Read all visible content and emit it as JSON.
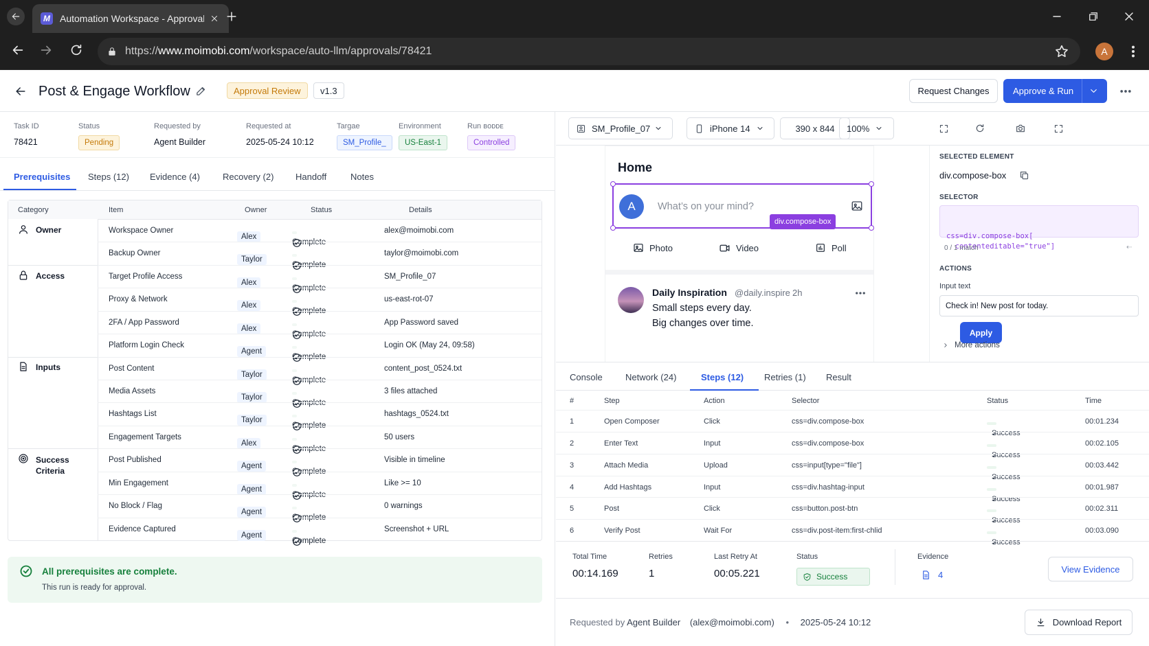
{
  "browser": {
    "tab_title": "Automation Workspace - Approval",
    "url_prefix": "https://",
    "url_host": "www.moimobi.com",
    "url_path": "/workspace/auto-llm/approvals/78421",
    "avatar_letter": "A",
    "favicon_letter": "M"
  },
  "header": {
    "title": "Post & Engage Workflow",
    "badge": "Approval Review",
    "version": "v1.3",
    "request_changes": "Request Changes",
    "approve_run": "Approve & Run"
  },
  "meta": {
    "task_id_label": "Task ID",
    "task_id": "78421",
    "status_label": "Status",
    "status": "Pending",
    "requested_by_label": "Requested by",
    "requested_by": "Agent Builder",
    "requested_at_label": "Requested at",
    "requested_at": "2025-05-24 10:12",
    "target_label": "Targae",
    "target": "SM_Profile_",
    "environment_label": "Environment",
    "environment": "US-East-1",
    "run_mode_label": "Run ʙᴏᴅᴅᴇ",
    "run_mode": "Controlled"
  },
  "left_tabs": [
    "Prerequisites",
    "Steps (12)",
    "Evidence (4)",
    "Recovery (2)",
    "Handoff",
    "Notes"
  ],
  "prereq_headers": [
    "Category",
    "Item",
    "Owner",
    "Status",
    "Details"
  ],
  "categories": [
    {
      "name": "Owner",
      "icon": "user-icon"
    },
    {
      "name": "Access",
      "icon": "lock-icon"
    },
    {
      "name": "Inputs",
      "icon": "document-icon"
    },
    {
      "name": "Success",
      "name2": "Criteria",
      "icon": "target-icon"
    }
  ],
  "prereq_rows": [
    {
      "item": "Workspace Owner",
      "owner": "Alex",
      "status": "Complete",
      "details": "alex@moimobi.com"
    },
    {
      "item": "Backup Owner",
      "owner": "Taylor",
      "status": "Complete",
      "details": "taylor@moimobi.com"
    },
    {
      "item": "Target Profile Access",
      "owner": "Alex",
      "status": "Complete",
      "details": "SM_Profile_07"
    },
    {
      "item": "Proxy & Network",
      "owner": "Alex",
      "status": "Complete",
      "details": "us-east-rot-07"
    },
    {
      "item": "2FA / App Password",
      "owner": "Alex",
      "status": "Complete",
      "details": "App Password saved"
    },
    {
      "item": "Platform Login Check",
      "owner": "Agent",
      "status": "Complete",
      "details": "Login OK (May 24, 09:58)"
    },
    {
      "item": "Post Content",
      "owner": "Taylor",
      "status": "Complete",
      "details": "content_post_0524.txt"
    },
    {
      "item": "Media Assets",
      "owner": "Taylor",
      "status": "Complete",
      "details": "3 files attached"
    },
    {
      "item": "Hashtags List",
      "owner": "Taylor",
      "status": "Complete",
      "details": "hashtags_0524.txt"
    },
    {
      "item": "Engagement Targets",
      "owner": "Alex",
      "status": "Complete",
      "details": "50 users"
    },
    {
      "item": "Post Published",
      "owner": "Agent",
      "status": "Complete",
      "details": "Visible in timeline"
    },
    {
      "item": "Min Engagement",
      "owner": "Agent",
      "status": "Complete",
      "details": "Like >= 10"
    },
    {
      "item": "No Block / Flag",
      "owner": "Agent",
      "status": "Complete",
      "details": "0 warnings"
    },
    {
      "item": "Evidence Captured",
      "owner": "Agent",
      "status": "Complete",
      "details": "Screenshot + URL"
    }
  ],
  "banner": {
    "title": "All prerequisites are complete.",
    "subtitle": "This run is ready for approval."
  },
  "device_toolbar": {
    "profile": "SM_Profile_07",
    "device": "iPhone 14",
    "resolution": "390 x 844",
    "zoom": "100%"
  },
  "preview": {
    "home": "Home",
    "avatar": "A",
    "composer_placeholder": "What’s on your mind?",
    "element_tag": "div.compose-box",
    "actions": [
      "Photo",
      "Video",
      "Poll"
    ],
    "post_author": "Daily Inspiration",
    "post_handle": "@daily.inspire",
    "post_time": "2h",
    "post_line1": "Small steps every day.",
    "post_line2": "Big changes over time."
  },
  "inspector": {
    "selected_label": "SELECTED ELEMENT",
    "selected_value": "div.compose-box",
    "selector_label": "SELECTOR",
    "selector_line1": "css=div.compose-box[",
    "selector_line2": "  contenteditable=\"true\"]",
    "match": "0 / 1 match",
    "actions_label": "ACTIONS",
    "input_label": "Input text",
    "input_value": "Check in! New post for today.",
    "apply": "Apply",
    "more_actions": "More actions"
  },
  "right_tabs": [
    "Console",
    "Network (24)",
    "Steps (12)",
    "Retries (1)",
    "Result"
  ],
  "steps_headers": [
    "#",
    "Step",
    "Action",
    "Selector",
    "Status",
    "Time"
  ],
  "steps": [
    {
      "n": "1",
      "step": "Open Composer",
      "action": "Click",
      "selector": "css=div.compose-box",
      "status": "Success",
      "time": "00:01.234"
    },
    {
      "n": "2",
      "step": "Enter Text",
      "action": "Input",
      "selector": "css=div.compose-box",
      "status": "Success",
      "time": "00:02.105"
    },
    {
      "n": "3",
      "step": "Attach Media",
      "action": "Upload",
      "selector": "css=input[type=\"file\"]",
      "status": "Success",
      "time": "00:03.442"
    },
    {
      "n": "4",
      "step": "Add Hashtags",
      "action": "Input",
      "selector": "css=div.hashtag-input",
      "status": "Success",
      "time": "00:01.987"
    },
    {
      "n": "5",
      "step": "Post",
      "action": "Click",
      "selector": "css=button.post-btn",
      "status": "Success",
      "time": "00:02.311"
    },
    {
      "n": "6",
      "step": "Verify Post",
      "action": "Wait For",
      "selector": "css=div.post-item:first-chlid",
      "status": "Success",
      "time": "00:03.090"
    }
  ],
  "summary": {
    "total_time_label": "Total Time",
    "total_time": "00:14.169",
    "retries_label": "Retries",
    "retries": "1",
    "last_retry_label": "Last Retry At",
    "last_retry": "00:05.221",
    "status_label": "Status",
    "status": "Success",
    "evidence_label": "Evidence",
    "evidence": "4",
    "view_evidence": "View Evidence"
  },
  "footer": {
    "requested_prefix": "Requested by",
    "requested_name": "Agent Builder",
    "requested_email": "(alex@moimobi.com)",
    "bullet": "•",
    "timestamp": "2025-05-24 10:12",
    "download": "Download Report"
  },
  "colors": {
    "primary": "#2d5be3",
    "purple": "#8b3fe0",
    "success": "#16803c",
    "badge_orange": "#c47a0a"
  }
}
